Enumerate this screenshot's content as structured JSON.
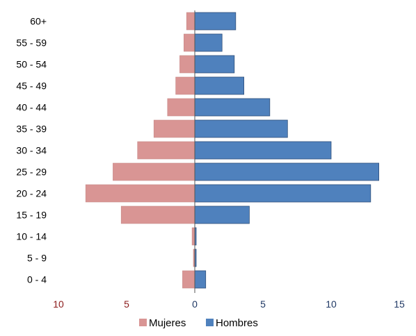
{
  "chart_data": {
    "type": "bar",
    "orientation": "horizontal",
    "subtype": "population-pyramid",
    "categories": [
      "0 - 4",
      "5 - 9",
      "10 - 14",
      "15 - 19",
      "20 - 24",
      "25 - 29",
      "30 - 34",
      "35 - 39",
      "40 - 44",
      "45 - 49",
      "50 - 54",
      "55 - 59",
      "60+"
    ],
    "series": [
      {
        "name": "Mujeres",
        "color": "#D99594",
        "side": "left",
        "values": [
          0.9,
          0.1,
          0.2,
          5.4,
          8.0,
          6.0,
          4.2,
          3.0,
          2.0,
          1.4,
          1.1,
          0.8,
          0.6
        ]
      },
      {
        "name": "Hombres",
        "color": "#4F81BD",
        "side": "right",
        "values": [
          0.8,
          0.1,
          0.1,
          4.0,
          12.9,
          13.5,
          10.0,
          6.8,
          5.5,
          3.6,
          2.9,
          2.0,
          3.0
        ]
      }
    ],
    "xlim": [
      -10,
      15
    ],
    "x_ticks": [
      {
        "label": "10",
        "value": -10,
        "color": "#8B1A1A"
      },
      {
        "label": "5",
        "value": -5,
        "color": "#8B1A1A"
      },
      {
        "label": "0",
        "value": 0,
        "color": "#1F3864"
      },
      {
        "label": "5",
        "value": 5,
        "color": "#1F3864"
      },
      {
        "label": "10",
        "value": 10,
        "color": "#1F3864"
      },
      {
        "label": "15",
        "value": 15,
        "color": "#1F3864"
      }
    ],
    "grid": false,
    "legend": "bottom",
    "title": "",
    "xlabel": "",
    "ylabel": ""
  },
  "legend": {
    "items": [
      {
        "label": "Mujeres",
        "color": "#D99594"
      },
      {
        "label": "Hombres",
        "color": "#4F81BD"
      }
    ]
  }
}
